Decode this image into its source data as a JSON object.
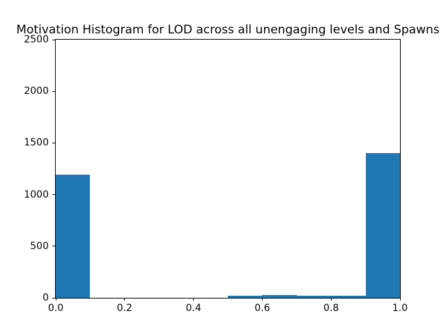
{
  "chart_data": {
    "type": "bar",
    "subtype": "histogram",
    "title": "Motivation Histogram for LOD across all unengaging levels and Spawns",
    "xlabel": "",
    "ylabel": "",
    "xlim": [
      0.0,
      1.0
    ],
    "ylim": [
      0,
      2500
    ],
    "grid": false,
    "legend": null,
    "bar_color": "#1f77b4",
    "bin_edges": [
      0.0,
      0.1,
      0.2,
      0.3,
      0.4,
      0.5,
      0.6,
      0.7,
      0.8,
      0.9,
      1.0
    ],
    "values": [
      1193,
      0,
      0,
      0,
      0,
      17,
      30,
      20,
      20,
      1403
    ],
    "xticks": [
      0.0,
      0.2,
      0.4,
      0.6,
      0.8,
      1.0
    ],
    "xtick_labels": [
      "0.0",
      "0.2",
      "0.4",
      "0.6",
      "0.8",
      "1.0"
    ],
    "yticks": [
      0,
      500,
      1000,
      1500,
      2000,
      2500
    ],
    "ytick_labels": [
      "0",
      "500",
      "1000",
      "1500",
      "2000",
      "2500"
    ]
  }
}
